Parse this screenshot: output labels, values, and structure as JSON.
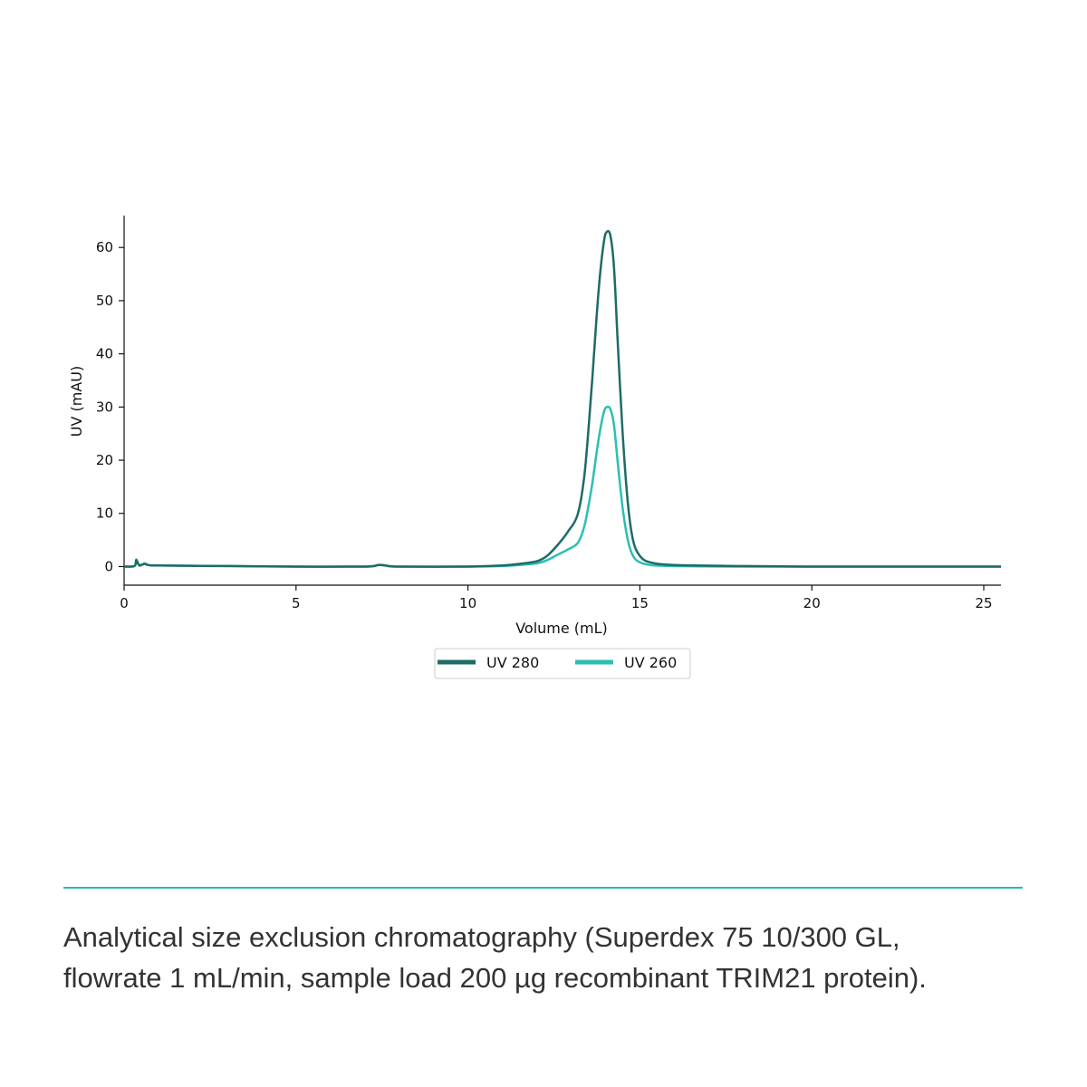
{
  "chart_data": {
    "type": "line",
    "xlabel": "Volume (mL)",
    "ylabel": "UV (mAU)",
    "xlim": [
      0,
      25.5
    ],
    "ylim": [
      -3.5,
      66
    ],
    "xticks": [
      0,
      5,
      10,
      15,
      20,
      25
    ],
    "yticks": [
      0,
      10,
      20,
      30,
      40,
      50,
      60
    ],
    "grid": false,
    "legend_position": "bottom-center",
    "series": [
      {
        "name": "UV 280",
        "color": "#1e6b66",
        "x": [
          0,
          0.3,
          0.35,
          0.4,
          0.45,
          0.5,
          0.6,
          0.7,
          1,
          3,
          5,
          7,
          7.4,
          7.6,
          8,
          10,
          11,
          11.5,
          12,
          12.3,
          12.6,
          12.9,
          13.2,
          13.4,
          13.6,
          13.8,
          13.95,
          14.05,
          14.15,
          14.25,
          14.35,
          14.5,
          14.65,
          14.8,
          15,
          15.3,
          16,
          18,
          20,
          22,
          24,
          25.5
        ],
        "y": [
          0,
          0.1,
          1.2,
          0.6,
          0.2,
          0.3,
          0.5,
          0.3,
          0.2,
          0.1,
          0,
          0,
          0.3,
          0.2,
          0,
          0,
          0.2,
          0.5,
          1,
          2,
          4,
          6.5,
          10,
          18,
          34,
          52,
          61,
          63,
          62,
          56,
          43,
          25,
          12,
          5,
          2,
          0.8,
          0.3,
          0.1,
          0,
          0,
          0,
          0
        ]
      },
      {
        "name": "UV 260",
        "color": "#2bbfb4",
        "x": [
          0,
          0.3,
          0.35,
          0.4,
          0.45,
          0.5,
          0.6,
          0.7,
          1,
          3,
          5,
          7,
          7.4,
          7.6,
          8,
          10,
          11,
          11.5,
          12,
          12.3,
          12.6,
          12.9,
          13.2,
          13.4,
          13.6,
          13.8,
          13.95,
          14.05,
          14.15,
          14.25,
          14.35,
          14.5,
          14.65,
          14.8,
          15,
          15.3,
          16,
          18,
          20,
          22,
          24,
          25.5
        ],
        "y": [
          0,
          0.1,
          1.3,
          0.7,
          0.2,
          0.3,
          0.6,
          0.3,
          0.2,
          0.1,
          0,
          0,
          0.3,
          0.2,
          0,
          0,
          0.1,
          0.3,
          0.6,
          1.2,
          2.2,
          3.2,
          4.5,
          8,
          15,
          24,
          29,
          30,
          29.5,
          26.5,
          20,
          11,
          5,
          2,
          0.8,
          0.3,
          0.1,
          0,
          0,
          0,
          0,
          0
        ]
      }
    ]
  },
  "caption": {
    "line1": "Analytical size exclusion chromatography (Superdex 75 10/300 GL,",
    "line2": "flowrate 1 mL/min, sample load 200 µg recombinant TRIM21 protein)."
  }
}
